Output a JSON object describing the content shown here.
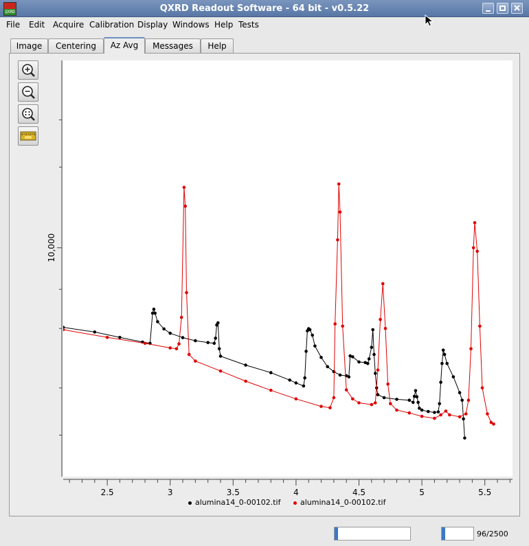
{
  "window": {
    "title": "QXRD Readout Software - 64 bit - v0.5.22",
    "icon_label": "QXRD"
  },
  "menu": [
    "File",
    "Edit",
    "Acquire",
    "Calibration",
    "Display",
    "Windows",
    "Help",
    "Tests"
  ],
  "tabs": [
    "Image",
    "Centering",
    "Az Avg",
    "Messages",
    "Help"
  ],
  "active_tab": "Az Avg",
  "tools": [
    "zoom-in-icon",
    "zoom-out-icon",
    "zoom-all-icon",
    "measure-icon"
  ],
  "status": {
    "progress_text": "96/2500",
    "progress_fraction": 0.0384
  },
  "chart_data": {
    "type": "line",
    "xlabel": "",
    "ylabel": "",
    "x_ticks": [
      "2.5",
      "3",
      "3.5",
      "4",
      "4.5",
      "5",
      "5.5"
    ],
    "y_tick_labels": [
      "10,000"
    ],
    "y_scale": "log",
    "xlim": [
      2.15,
      5.72
    ],
    "ylim": [
      1400,
      50000
    ],
    "grid": false,
    "legend_position": "bottom",
    "series": [
      {
        "name": "alumina14_0-00102.tif",
        "color": "#000000",
        "points": [
          [
            2.15,
            5050
          ],
          [
            2.4,
            4850
          ],
          [
            2.6,
            4630
          ],
          [
            2.78,
            4450
          ],
          [
            2.84,
            4400
          ],
          [
            2.86,
            5700
          ],
          [
            2.87,
            5900
          ],
          [
            2.88,
            5700
          ],
          [
            2.9,
            5300
          ],
          [
            2.95,
            4980
          ],
          [
            3.0,
            4800
          ],
          [
            3.1,
            4620
          ],
          [
            3.2,
            4500
          ],
          [
            3.3,
            4430
          ],
          [
            3.35,
            4400
          ],
          [
            3.36,
            4600
          ],
          [
            3.37,
            5150
          ],
          [
            3.38,
            5250
          ],
          [
            3.39,
            4200
          ],
          [
            3.4,
            3940
          ],
          [
            3.6,
            3650
          ],
          [
            3.8,
            3420
          ],
          [
            3.95,
            3210
          ],
          [
            4.0,
            3130
          ],
          [
            4.06,
            3050
          ],
          [
            4.07,
            3270
          ],
          [
            4.08,
            4110
          ],
          [
            4.09,
            4900
          ],
          [
            4.1,
            4990
          ],
          [
            4.11,
            4950
          ],
          [
            4.13,
            4720
          ],
          [
            4.15,
            4300
          ],
          [
            4.2,
            3900
          ],
          [
            4.25,
            3600
          ],
          [
            4.3,
            3450
          ],
          [
            4.35,
            3350
          ],
          [
            4.4,
            3330
          ],
          [
            4.42,
            3300
          ],
          [
            4.43,
            3950
          ],
          [
            4.45,
            3920
          ],
          [
            4.5,
            3750
          ],
          [
            4.55,
            3730
          ],
          [
            4.57,
            3700
          ],
          [
            4.58,
            3850
          ],
          [
            4.6,
            4250
          ],
          [
            4.61,
            4950
          ],
          [
            4.62,
            4000
          ],
          [
            4.63,
            3400
          ],
          [
            4.64,
            3000
          ],
          [
            4.65,
            2830
          ],
          [
            4.7,
            2760
          ],
          [
            4.8,
            2720
          ],
          [
            4.9,
            2700
          ],
          [
            4.93,
            2650
          ],
          [
            4.94,
            2790
          ],
          [
            4.95,
            2930
          ],
          [
            4.96,
            2780
          ],
          [
            4.97,
            2650
          ],
          [
            4.98,
            2520
          ],
          [
            5.0,
            2480
          ],
          [
            5.05,
            2450
          ],
          [
            5.1,
            2430
          ],
          [
            5.13,
            2440
          ],
          [
            5.14,
            2620
          ],
          [
            5.15,
            3150
          ],
          [
            5.16,
            3700
          ],
          [
            5.17,
            4150
          ],
          [
            5.18,
            4000
          ],
          [
            5.2,
            3700
          ],
          [
            5.25,
            3300
          ],
          [
            5.3,
            2880
          ],
          [
            5.32,
            2700
          ],
          [
            5.33,
            2300
          ],
          [
            5.34,
            1950
          ]
        ]
      },
      {
        "name": "alumina14_0-00102.tif",
        "color": "#e00000",
        "points": [
          [
            2.15,
            4950
          ],
          [
            2.5,
            4630
          ],
          [
            2.8,
            4400
          ],
          [
            3.0,
            4230
          ],
          [
            3.05,
            4200
          ],
          [
            3.07,
            4380
          ],
          [
            3.09,
            5500
          ],
          [
            3.11,
            16800
          ],
          [
            3.12,
            14300
          ],
          [
            3.13,
            6800
          ],
          [
            3.15,
            4000
          ],
          [
            3.2,
            3780
          ],
          [
            3.4,
            3470
          ],
          [
            3.6,
            3180
          ],
          [
            3.8,
            2940
          ],
          [
            4.0,
            2730
          ],
          [
            4.2,
            2560
          ],
          [
            4.27,
            2530
          ],
          [
            4.3,
            2760
          ],
          [
            4.31,
            5200
          ],
          [
            4.33,
            10700
          ],
          [
            4.34,
            17300
          ],
          [
            4.35,
            13600
          ],
          [
            4.37,
            5100
          ],
          [
            4.4,
            2950
          ],
          [
            4.45,
            2730
          ],
          [
            4.5,
            2640
          ],
          [
            4.6,
            2600
          ],
          [
            4.63,
            2640
          ],
          [
            4.65,
            3500
          ],
          [
            4.67,
            5400
          ],
          [
            4.69,
            7350
          ],
          [
            4.71,
            5000
          ],
          [
            4.73,
            3100
          ],
          [
            4.75,
            2620
          ],
          [
            4.8,
            2480
          ],
          [
            4.9,
            2420
          ],
          [
            5.0,
            2350
          ],
          [
            5.1,
            2310
          ],
          [
            5.15,
            2380
          ],
          [
            5.19,
            2460
          ],
          [
            5.22,
            2380
          ],
          [
            5.3,
            2340
          ],
          [
            5.35,
            2400
          ],
          [
            5.37,
            2700
          ],
          [
            5.39,
            4200
          ],
          [
            5.41,
            10000
          ],
          [
            5.42,
            12400
          ],
          [
            5.44,
            9700
          ],
          [
            5.46,
            5100
          ],
          [
            5.48,
            3000
          ],
          [
            5.52,
            2400
          ],
          [
            5.55,
            2230
          ],
          [
            5.57,
            2200
          ]
        ]
      }
    ]
  }
}
